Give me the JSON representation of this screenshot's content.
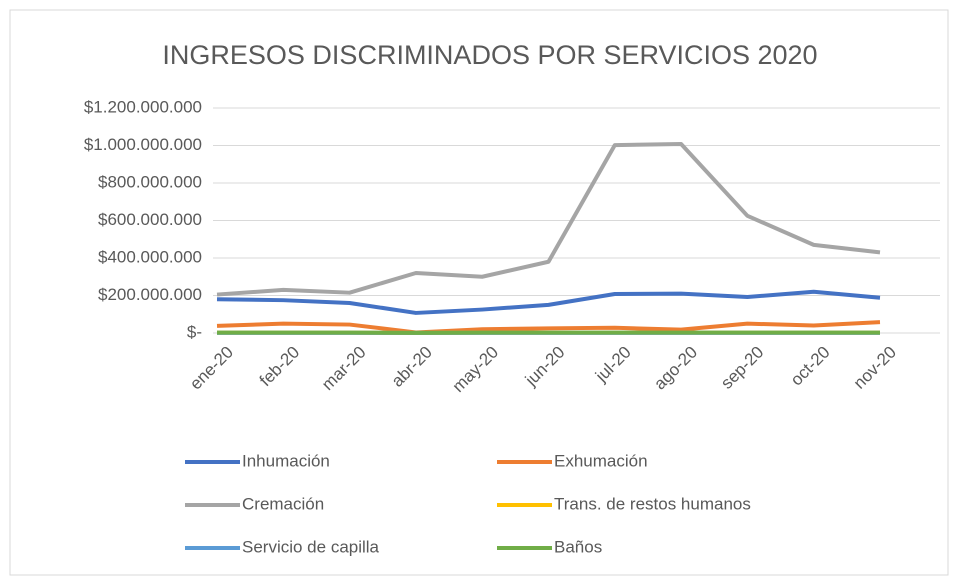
{
  "chart_data": {
    "type": "line",
    "title": "INGRESOS DISCRIMINADOS POR SERVICIOS 2020",
    "categories": [
      "ene-20",
      "feb-20",
      "mar-20",
      "abr-20",
      "may-20",
      "jun-20",
      "jul-20",
      "ago-20",
      "sep-20",
      "oct-20",
      "nov-20"
    ],
    "series": [
      {
        "name": "Inhumación",
        "color": "#4472c4",
        "values": [
          180000000,
          175000000,
          160000000,
          107000000,
          125000000,
          150000000,
          208000000,
          210000000,
          192000000,
          220000000,
          188000000
        ]
      },
      {
        "name": "Exhumación",
        "color": "#ed7d31",
        "values": [
          38000000,
          50000000,
          45000000,
          3000000,
          20000000,
          25000000,
          28000000,
          18000000,
          50000000,
          40000000,
          58000000
        ]
      },
      {
        "name": "Cremación",
        "color": "#a5a5a5",
        "values": [
          205000000,
          230000000,
          215000000,
          320000000,
          300000000,
          380000000,
          1002000000,
          1008000000,
          625000000,
          470000000,
          430000000
        ]
      },
      {
        "name": "Trans. de restos humanos",
        "color": "#ffc000",
        "values": [
          2000000,
          2000000,
          2000000,
          1000000,
          2000000,
          2000000,
          2000000,
          2000000,
          2000000,
          2000000,
          2000000
        ]
      },
      {
        "name": "Servicio de capilla",
        "color": "#5b9bd5",
        "values": [
          1000000,
          1000000,
          1000000,
          500000,
          1000000,
          1000000,
          1000000,
          1000000,
          1000000,
          1000000,
          1000000
        ]
      },
      {
        "name": "Baños",
        "color": "#70ad47",
        "values": [
          2000000,
          2000000,
          2000000,
          1000000,
          2000000,
          2000000,
          2000000,
          2000000,
          2000000,
          2000000,
          2000000
        ]
      }
    ],
    "ylim": [
      0,
      1200000000
    ],
    "yticks": [
      {
        "value": 0,
        "label": "$-"
      },
      {
        "value": 200000000,
        "label": "$200.000.000"
      },
      {
        "value": 400000000,
        "label": "$400.000.000"
      },
      {
        "value": 600000000,
        "label": "$600.000.000"
      },
      {
        "value": 800000000,
        "label": "$800.000.000"
      },
      {
        "value": 1000000000,
        "label": "$1.000.000.000"
      },
      {
        "value": 1200000000,
        "label": "$1.200.000.000"
      }
    ],
    "grid": true,
    "legend": "bottom"
  }
}
